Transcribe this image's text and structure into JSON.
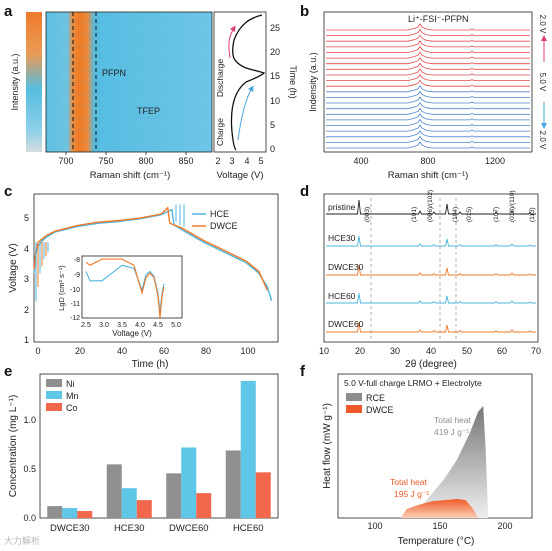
{
  "panel_labels": [
    "a",
    "b",
    "c",
    "d",
    "e",
    "f"
  ],
  "colors": {
    "orange": "#ee7a2a",
    "blue": "#4fb4dc",
    "gray": "#8f8f8f",
    "red": "#f2664b",
    "cyan": "#5ec6e6",
    "black": "#222222",
    "pink": "#e23c78",
    "arrow_blue": "#4aa7df",
    "spectrum_red": "#e03838",
    "spectrum_blue": "#3d78c8"
  },
  "panel_a": {
    "ylabel": "Intensity (a.u.)",
    "xlabel": "Raman shift (cm⁻¹)",
    "xticks": [
      "700",
      "750",
      "800",
      "850"
    ],
    "ann_pfpn": "PFPN",
    "ann_tfep": "TFEP",
    "voltage_xlabel": "Voltage (V)",
    "voltage_xticks": [
      "2",
      "3",
      "4",
      "5"
    ],
    "time_ylabel": "Time (h)",
    "time_yticks": [
      "0",
      "5",
      "10",
      "15",
      "20",
      "25"
    ],
    "discharge_label": "Discharge",
    "charge_label": "Charge"
  },
  "panel_b": {
    "title": "Li⁺-FSI⁻-PFPN",
    "ylabel": "Indensity (a.u.)",
    "xlabel": "Raman shift (cm⁻¹)",
    "xticks": [
      "400",
      "800",
      "1200"
    ],
    "right_labels": [
      "2.0 V",
      "5.0 V",
      "2.0 V"
    ]
  },
  "panel_c": {
    "ylabel": "Voltage (V)",
    "xlabel": "Time (h)",
    "xticks": [
      "0",
      "20",
      "40",
      "60",
      "80",
      "100"
    ],
    "yticks": [
      "1",
      "2",
      "3",
      "4",
      "5"
    ],
    "legend": [
      "HCE",
      "DWCE"
    ],
    "inset_ylabel": "LgD (cm² s⁻¹)",
    "inset_xlabel": "Voltage (V)",
    "inset_xticks": [
      "2.5",
      "3.0",
      "3.5",
      "4.0",
      "4.5",
      "5.0"
    ],
    "inset_yticks": [
      "-8",
      "-9",
      "-10",
      "-11",
      "-12"
    ]
  },
  "panel_d": {
    "traces": [
      "pristine",
      "HCE30",
      "DWCE30",
      "HCE60",
      "DWCE60"
    ],
    "peaks": [
      "(003)",
      "(101)",
      "(006)/(102)",
      "(104)",
      "(015)",
      "(107)",
      "(018)/(110)",
      "(113)"
    ],
    "xlabel": "2θ (degree)",
    "xticks": [
      "10",
      "20",
      "30",
      "40",
      "50",
      "60",
      "70"
    ]
  },
  "panel_e": {
    "ylabel": "Concentration (mg L⁻¹)",
    "yticks": [
      "0.0",
      "0.5",
      "1.0"
    ],
    "legend": [
      "Ni",
      "Mn",
      "Co"
    ]
  },
  "panel_f": {
    "title": "5.0 V-full charge LRMO + Electrolyte",
    "legend": [
      "RCE",
      "DWCE"
    ],
    "ylabel": "Heat flow (mW g⁻¹)",
    "xlabel": "Temperature (°C)",
    "xticks": [
      "100",
      "150",
      "200"
    ],
    "rce_note_1": "Total heat",
    "rce_note_2": "419 J g⁻¹",
    "dwce_note_1": "Total heat",
    "dwce_note_2": "195 J g⁻¹"
  },
  "watermark": "大力解析",
  "chart_data": [
    {
      "panel": "e",
      "type": "bar",
      "categories": [
        "DWCE30",
        "HCE30",
        "DWCE60",
        "HCE60"
      ],
      "series": [
        {
          "name": "Ni",
          "values": [
            0.12,
            0.54,
            0.45,
            0.68
          ]
        },
        {
          "name": "Mn",
          "values": [
            0.1,
            0.3,
            0.71,
            1.38
          ]
        },
        {
          "name": "Co",
          "values": [
            0.07,
            0.18,
            0.25,
            0.46
          ]
        }
      ],
      "ylabel": "Concentration (mg L⁻¹)",
      "ylim": [
        0,
        1.45
      ],
      "legend_position": "top-left"
    },
    {
      "panel": "c",
      "type": "line",
      "xlabel": "Time (h)",
      "ylabel": "Voltage (V)",
      "xlim": [
        0,
        115
      ],
      "ylim": [
        1,
        5.3
      ],
      "series": [
        {
          "name": "HCE",
          "x": [
            0,
            1,
            2,
            4,
            6,
            10,
            20,
            30,
            40,
            50,
            60,
            65,
            66,
            70,
            80,
            90,
            100,
            106,
            110,
            112
          ],
          "y": [
            3.0,
            3.6,
            3.8,
            3.95,
            4.05,
            4.2,
            4.35,
            4.45,
            4.5,
            4.58,
            4.7,
            4.85,
            4.4,
            4.25,
            3.9,
            3.6,
            3.3,
            3.0,
            2.6,
            2.2
          ]
        },
        {
          "name": "DWCE",
          "x": [
            0,
            1,
            2,
            4,
            6,
            10,
            20,
            30,
            40,
            50,
            60,
            63,
            64,
            70,
            80,
            90,
            100,
            106,
            110
          ],
          "y": [
            3.1,
            3.7,
            3.9,
            4.0,
            4.1,
            4.22,
            4.38,
            4.48,
            4.53,
            4.6,
            4.72,
            4.9,
            4.45,
            4.3,
            3.95,
            3.65,
            3.35,
            3.05,
            2.5
          ]
        }
      ],
      "inset": {
        "xlabel": "Voltage (V)",
        "ylabel": "LgD (cm² s⁻¹)",
        "xlim": [
          2.5,
          5.0
        ],
        "ylim": [
          -12,
          -8
        ],
        "series": [
          {
            "name": "HCE",
            "x": [
              2.6,
              2.7,
              3.0,
              3.5,
              3.8,
              4.0,
              4.1,
              4.2,
              4.3,
              4.4,
              4.45,
              4.5,
              4.55
            ],
            "y": [
              -9.0,
              -9.6,
              -9.6,
              -8.6,
              -8.8,
              -10.2,
              -9.2,
              -9.0,
              -9.3,
              -10.4,
              -11.6,
              -10.4,
              -9.8
            ]
          },
          {
            "name": "DWCE",
            "x": [
              2.6,
              2.7,
              3.0,
              3.5,
              3.8,
              4.0,
              4.1,
              4.2,
              4.3,
              4.4,
              4.45,
              4.5,
              4.55
            ],
            "y": [
              -8.4,
              -8.6,
              -8.2,
              -8.2,
              -8.6,
              -10.4,
              -9.4,
              -9.1,
              -9.4,
              -10.6,
              -12.0,
              -10.6,
              -10.0
            ]
          }
        ]
      }
    },
    {
      "panel": "f",
      "type": "area",
      "xlabel": "Temperature (°C)",
      "ylabel": "Heat flow (mW g⁻¹)",
      "xlim": [
        70,
        225
      ],
      "series": [
        {
          "name": "RCE",
          "x": [
            125,
            140,
            155,
            165,
            175,
            182,
            186,
            188,
            190
          ],
          "y": [
            0.0,
            0.15,
            0.35,
            0.52,
            0.75,
            0.95,
            1.0,
            0.6,
            0.0
          ]
        },
        {
          "name": "DWCE",
          "x": [
            120,
            125,
            135,
            145,
            155,
            165,
            172,
            178,
            182
          ],
          "y": [
            0.0,
            0.08,
            0.12,
            0.15,
            0.16,
            0.17,
            0.16,
            0.08,
            0.0
          ]
        }
      ]
    }
  ]
}
